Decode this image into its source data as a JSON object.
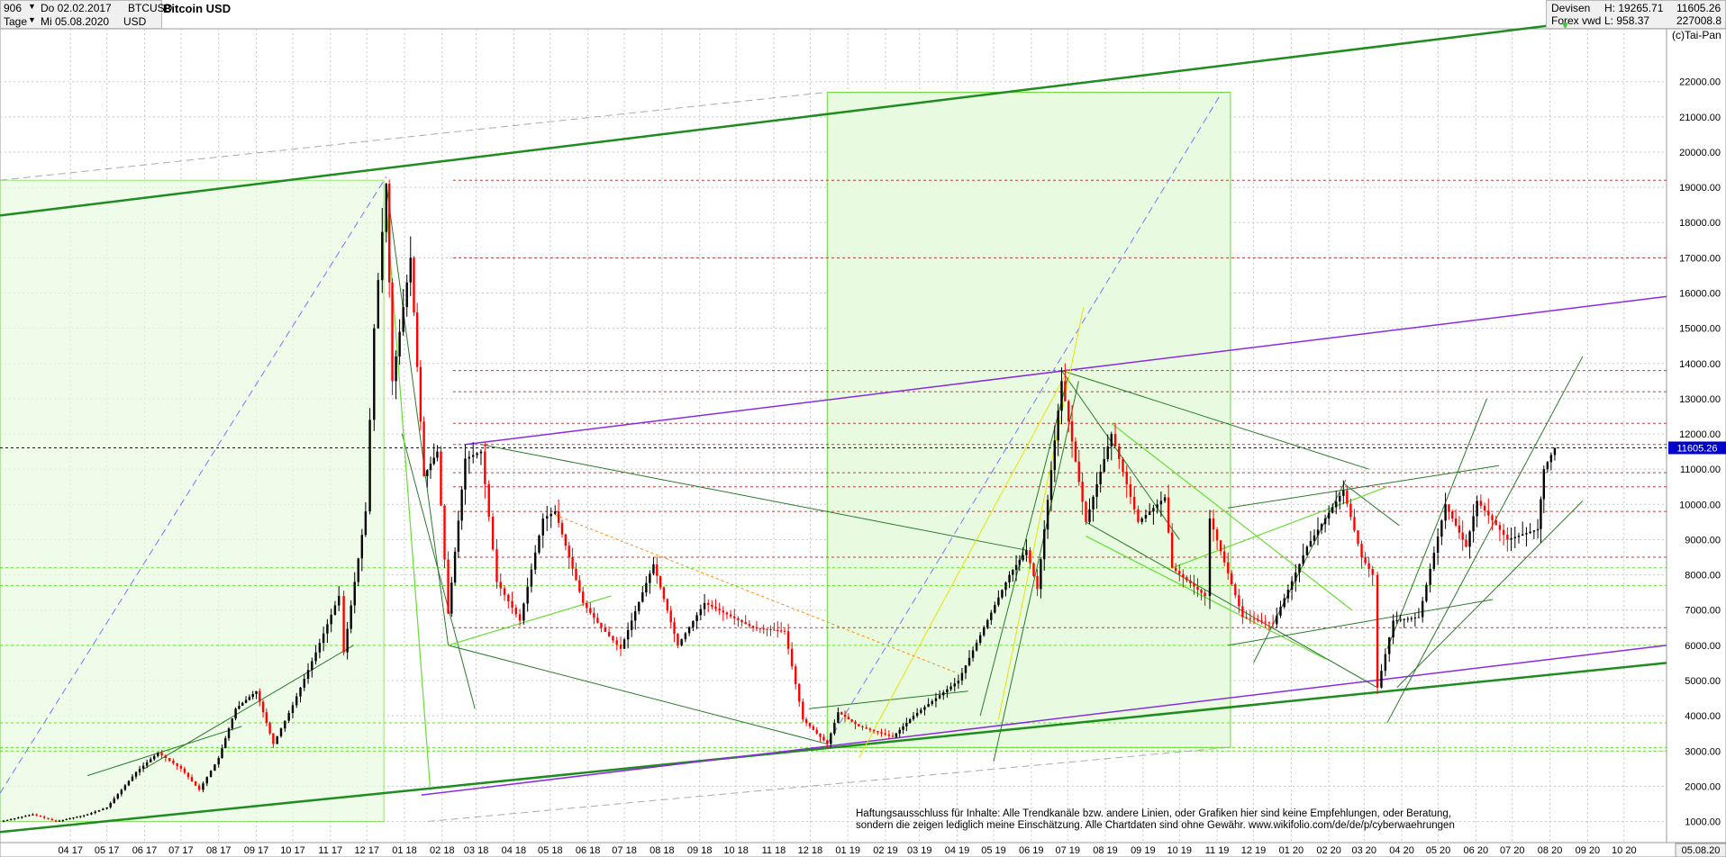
{
  "header": {
    "symbol_count": "906",
    "date_from": "Do 02.02.2017",
    "date_to": "Mi 05.08.2020",
    "interval": "Tage",
    "ticker": "BTCUSD",
    "currency": "USD",
    "title": "Bitcoin USD",
    "market": "Devisen",
    "source": "Forex vwd",
    "high": "H: 19265.71",
    "low": "L: 958.37",
    "last": "11605.26",
    "volume": "227008.8",
    "copyright": "(c)Tai-Pan"
  },
  "disclaimer": {
    "line1": "Haftungsausschluss für Inhalte: Alle Trendkanäle bzw. andere Linien, oder Grafiken hier sind keine Empfehlungen, oder Beratung,",
    "line2": "sondern die zeigen lediglich meine  Einschätzung. Alle Chartdaten sind ohne Gewähr.  www.wikifolio.com/de/de/p/cyberwaehrungen"
  },
  "colors": {
    "up": "#000000",
    "down": "#ff0000",
    "trend_main": "#1e8c1e",
    "trend_thin": "#2a7a2a",
    "light_green": "#66dd33",
    "purple": "#8a2be2",
    "red_dotted": "#e03030",
    "current_price": "#0000cc",
    "zone_fill": "#e8fbe0"
  },
  "chart_data": {
    "type": "candlestick",
    "title": "Bitcoin USD",
    "ylim": [
      400,
      23500
    ],
    "x_range": [
      "2017-02-02",
      "2020-11-05"
    ],
    "y_ticks": [
      1000,
      2000,
      3000,
      4000,
      5000,
      6000,
      7000,
      8000,
      9000,
      10000,
      11000,
      12000,
      13000,
      14000,
      15000,
      16000,
      17000,
      18000,
      19000,
      20000,
      21000,
      22000
    ],
    "y_tick_labels": [
      "1000.00",
      "2000.00",
      "3000.00",
      "4000.00",
      "5000.00",
      "6000.00",
      "7000.00",
      "8000.00",
      "9000.00",
      "10000.00",
      "11000.00",
      "12000.00",
      "13000.00",
      "14000.00",
      "15000.00",
      "16000.00",
      "17000.00",
      "18000.00",
      "19000.00",
      "20000.00",
      "21000.00",
      "22000.00"
    ],
    "x_ticks": [
      {
        "date": "2017-04-01",
        "label": "04 17"
      },
      {
        "date": "2017-05-01",
        "label": "05 17"
      },
      {
        "date": "2017-06-01",
        "label": "06 17"
      },
      {
        "date": "2017-07-01",
        "label": "07 17"
      },
      {
        "date": "2017-08-01",
        "label": "08 17"
      },
      {
        "date": "2017-09-01",
        "label": "09 17"
      },
      {
        "date": "2017-10-01",
        "label": "10 17"
      },
      {
        "date": "2017-11-01",
        "label": "11 17"
      },
      {
        "date": "2017-12-01",
        "label": "12 17"
      },
      {
        "date": "2018-01-01",
        "label": "01 18"
      },
      {
        "date": "2018-02-01",
        "label": "02 18"
      },
      {
        "date": "2018-03-01",
        "label": "03 18"
      },
      {
        "date": "2018-04-01",
        "label": "04 18"
      },
      {
        "date": "2018-05-01",
        "label": "05 18"
      },
      {
        "date": "2018-06-01",
        "label": "06 18"
      },
      {
        "date": "2018-07-01",
        "label": "07 18"
      },
      {
        "date": "2018-08-01",
        "label": "08 18"
      },
      {
        "date": "2018-09-01",
        "label": "09 18"
      },
      {
        "date": "2018-10-01",
        "label": "10 18"
      },
      {
        "date": "2018-11-01",
        "label": "11 18"
      },
      {
        "date": "2018-12-01",
        "label": "12 18"
      },
      {
        "date": "2019-01-01",
        "label": "01 19"
      },
      {
        "date": "2019-02-01",
        "label": "02 19"
      },
      {
        "date": "2019-03-01",
        "label": "03 19"
      },
      {
        "date": "2019-04-01",
        "label": "04 19"
      },
      {
        "date": "2019-05-01",
        "label": "05 19"
      },
      {
        "date": "2019-06-01",
        "label": "06 19"
      },
      {
        "date": "2019-07-01",
        "label": "07 19"
      },
      {
        "date": "2019-08-01",
        "label": "08 19"
      },
      {
        "date": "2019-09-01",
        "label": "09 19"
      },
      {
        "date": "2019-10-01",
        "label": "10 19"
      },
      {
        "date": "2019-11-01",
        "label": "11 19"
      },
      {
        "date": "2019-12-01",
        "label": "12 19"
      },
      {
        "date": "2020-01-01",
        "label": "01 20"
      },
      {
        "date": "2020-02-01",
        "label": "02 20"
      },
      {
        "date": "2020-03-01",
        "label": "03 20"
      },
      {
        "date": "2020-04-01",
        "label": "04 20"
      },
      {
        "date": "2020-05-01",
        "label": "05 20"
      },
      {
        "date": "2020-06-01",
        "label": "06 20"
      },
      {
        "date": "2020-07-01",
        "label": "07 20"
      },
      {
        "date": "2020-08-01",
        "label": "08 20"
      },
      {
        "date": "2020-09-01",
        "label": "09 20"
      },
      {
        "date": "2020-10-01",
        "label": "10 20"
      }
    ],
    "last_date_label": "05.08.20",
    "last_price": 11605.26,
    "last_price_label": "11605.26",
    "grid": true,
    "price_path": [
      [
        "2017-02-02",
        1000
      ],
      [
        "2017-03-01",
        1200
      ],
      [
        "2017-03-20",
        1000
      ],
      [
        "2017-04-15",
        1200
      ],
      [
        "2017-05-01",
        1400
      ],
      [
        "2017-05-25",
        2400
      ],
      [
        "2017-06-12",
        2950
      ],
      [
        "2017-07-01",
        2500
      ],
      [
        "2017-07-16",
        1900
      ],
      [
        "2017-08-01",
        2800
      ],
      [
        "2017-08-15",
        4200
      ],
      [
        "2017-09-01",
        4700
      ],
      [
        "2017-09-15",
        3200
      ],
      [
        "2017-10-01",
        4300
      ],
      [
        "2017-10-20",
        5800
      ],
      [
        "2017-11-08",
        7400
      ],
      [
        "2017-11-12",
        5800
      ],
      [
        "2017-11-30",
        9800
      ],
      [
        "2017-12-07",
        15000
      ],
      [
        "2017-12-17",
        19100
      ],
      [
        "2017-12-22",
        13500
      ],
      [
        "2018-01-06",
        17000
      ],
      [
        "2018-01-17",
        10800
      ],
      [
        "2018-01-28",
        11500
      ],
      [
        "2018-02-06",
        6900
      ],
      [
        "2018-02-20",
        11300
      ],
      [
        "2018-03-05",
        11500
      ],
      [
        "2018-03-18",
        7800
      ],
      [
        "2018-04-06",
        6700
      ],
      [
        "2018-04-25",
        9600
      ],
      [
        "2018-05-05",
        9800
      ],
      [
        "2018-05-28",
        7200
      ],
      [
        "2018-06-12",
        6500
      ],
      [
        "2018-06-28",
        5900
      ],
      [
        "2018-07-25",
        8300
      ],
      [
        "2018-08-14",
        6000
      ],
      [
        "2018-09-05",
        7200
      ],
      [
        "2018-10-15",
        6500
      ],
      [
        "2018-11-10",
        6400
      ],
      [
        "2018-11-25",
        3900
      ],
      [
        "2018-12-15",
        3200
      ],
      [
        "2018-12-24",
        4100
      ],
      [
        "2019-01-10",
        3700
      ],
      [
        "2019-02-07",
        3400
      ],
      [
        "2019-02-24",
        4000
      ],
      [
        "2019-04-02",
        5000
      ],
      [
        "2019-05-14",
        8000
      ],
      [
        "2019-05-28",
        8700
      ],
      [
        "2019-06-06",
        7600
      ],
      [
        "2019-06-26",
        13500
      ],
      [
        "2019-07-16",
        9500
      ],
      [
        "2019-08-06",
        12000
      ],
      [
        "2019-08-28",
        9500
      ],
      [
        "2019-09-19",
        10200
      ],
      [
        "2019-09-25",
        8200
      ],
      [
        "2019-10-22",
        7400
      ],
      [
        "2019-10-26",
        9600
      ],
      [
        "2019-11-22",
        6800
      ],
      [
        "2019-12-17",
        6600
      ],
      [
        "2020-01-14",
        8800
      ],
      [
        "2020-02-13",
        10400
      ],
      [
        "2020-02-28",
        8500
      ],
      [
        "2020-03-08",
        8000
      ],
      [
        "2020-03-12",
        4800
      ],
      [
        "2020-03-25",
        6700
      ],
      [
        "2020-04-15",
        6800
      ],
      [
        "2020-05-07",
        10000
      ],
      [
        "2020-05-24",
        8800
      ],
      [
        "2020-06-02",
        10100
      ],
      [
        "2020-06-27",
        9000
      ],
      [
        "2020-07-22",
        9300
      ],
      [
        "2020-07-27",
        11000
      ],
      [
        "2020-08-05",
        11605
      ]
    ],
    "horizontal_levels_red": [
      19200,
      17000,
      13800,
      13200,
      12300,
      11700,
      10900,
      10500,
      9800,
      8500,
      6500
    ],
    "horizontal_levels_green": [
      8200,
      7700,
      6000,
      3800,
      3100,
      3000
    ],
    "trendlines_main": [
      {
        "from": [
          "2017-02-02",
          18200
        ],
        "to": [
          "2020-11-05",
          24000
        ]
      },
      {
        "from": [
          "2017-02-02",
          700
        ],
        "to": [
          "2020-11-05",
          5500
        ]
      }
    ],
    "trendlines_purple": [
      {
        "from": [
          "2018-02-20",
          11700
        ],
        "to": [
          "2020-11-05",
          15900
        ]
      },
      {
        "from": [
          "2018-01-15",
          1750
        ],
        "to": [
          "2020-11-05",
          6000
        ]
      }
    ]
  }
}
